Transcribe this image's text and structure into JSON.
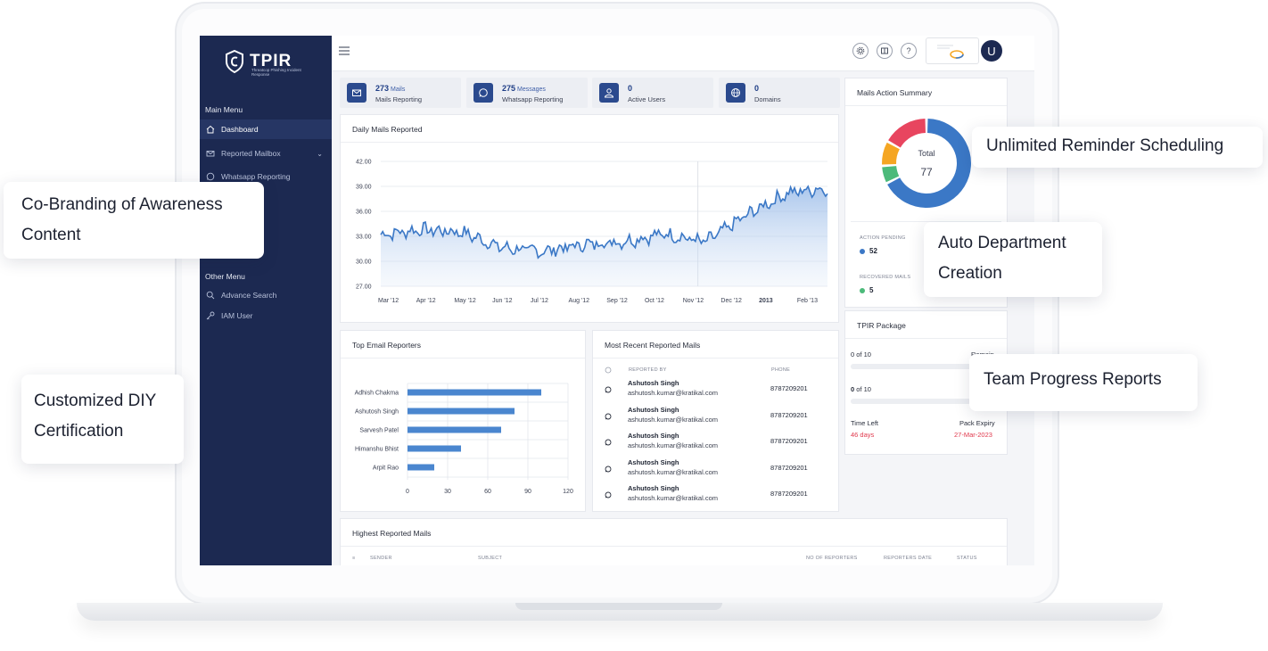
{
  "sidebar": {
    "brand": "TPIR",
    "brand_tagline": "Threatcop Phishing Incident Response",
    "main_menu_label": "Main Menu",
    "items": [
      {
        "label": "Dashboard",
        "icon": "home-icon",
        "active": true
      },
      {
        "label": "Reported Mailbox",
        "icon": "mail-icon",
        "has_caret": true
      },
      {
        "label": "Whatsapp Reporting",
        "icon": "whatsapp-icon"
      }
    ],
    "other_menu_label": "Other Menu",
    "other_items": [
      {
        "label": "Advance Search",
        "icon": "search-icon"
      },
      {
        "label": "IAM User",
        "icon": "key-icon"
      }
    ]
  },
  "topbar": {
    "avatar_initial": "U",
    "icons": [
      "gear-icon",
      "book-icon",
      "help-icon"
    ],
    "help_glyph": "?"
  },
  "stats": [
    {
      "number": "273",
      "unit": "Mails",
      "label": "Mails Reporting",
      "icon": "mail-icon"
    },
    {
      "number": "275",
      "unit": "Messages",
      "label": "Whatsapp Reporting",
      "icon": "whatsapp-icon"
    },
    {
      "number": "0",
      "unit": "",
      "label": "Active Users",
      "icon": "user-icon"
    },
    {
      "number": "0",
      "unit": "",
      "label": "Domains",
      "icon": "globe-icon"
    }
  ],
  "daily_chart": {
    "title": "Daily Mails Reported",
    "y_ticks": [
      "42.00",
      "39.00",
      "36.00",
      "33.00",
      "30.00",
      "27.00"
    ],
    "x_ticks": [
      "Mar '12",
      "Apr '12",
      "May '12",
      "Jun '12",
      "Jul '12",
      "Aug '12",
      "Sep '12",
      "Oct '12",
      "Nov '12",
      "Dec '12",
      "2013",
      "Feb '13"
    ]
  },
  "chart_data": [
    {
      "type": "area",
      "title": "Daily Mails Reported",
      "xlabel": "",
      "ylabel": "",
      "ylim": [
        27,
        42
      ],
      "x": [
        "Mar '12",
        "Apr '12",
        "May '12",
        "Jun '12",
        "Jul '12",
        "Aug '12",
        "Sep '12",
        "Oct '12",
        "Nov '12",
        "Dec '12",
        "2013",
        "Feb '13"
      ],
      "series": [
        {
          "values": [
            33.2,
            33.8,
            33.5,
            31.6,
            31.2,
            32.0,
            32.4,
            33.3,
            32.3,
            35.5,
            38.2,
            38.8
          ]
        }
      ],
      "grid": true
    },
    {
      "type": "bar",
      "orientation": "horizontal",
      "title": "Top Email Reporters",
      "categories": [
        "Adhish Chakma",
        "Ashutosh Singh",
        "Sarvesh Patel",
        "Himanshu Bhist",
        "Arpit Rao"
      ],
      "values": [
        100,
        80,
        70,
        40,
        20
      ],
      "x_ticks": [
        "0",
        "30",
        "60",
        "90",
        "120"
      ],
      "xlim": [
        0,
        120
      ],
      "color": "#4a86cf"
    },
    {
      "type": "pie",
      "title": "Mails Action Summary",
      "categories": [
        "Action Pending",
        "Recovered Mails",
        "Other (orange)",
        "Other (red)"
      ],
      "values": [
        52,
        5,
        7,
        13
      ],
      "colors": [
        "#3b78c6",
        "#4cba7a",
        "#f5a623",
        "#e8455f"
      ],
      "center_label": "Total",
      "center_value": "77"
    }
  ],
  "reporters": {
    "title": "Top Email Reporters",
    "names": [
      "Adhish Chakma",
      "Ashutosh Singh",
      "Sarvesh Patel",
      "Himanshu Bhist",
      "Arpit Rao"
    ],
    "x_ticks": [
      "0",
      "30",
      "60",
      "90",
      "120"
    ]
  },
  "recent": {
    "title": "Most Recent Reported Mails",
    "col_reported_by": "REPORTED BY",
    "col_phone": "PHONE",
    "rows": [
      {
        "name": "Ashutosh Singh",
        "email": "ashutosh.kumar@kratikal.com",
        "phone": "8787209201"
      },
      {
        "name": "Ashutosh Singh",
        "email": "ashutosh.kumar@kratikal.com",
        "phone": "8787209201"
      },
      {
        "name": "Ashutosh Singh",
        "email": "ashutosh.kumar@kratikal.com",
        "phone": "8787209201"
      },
      {
        "name": "Ashutosh Singh",
        "email": "ashutosh.kumar@kratikal.com",
        "phone": "8787209201"
      },
      {
        "name": "Ashutosh Singh",
        "email": "ashutosh.kumar@kratikal.com",
        "phone": "8787209201"
      }
    ]
  },
  "summary": {
    "title": "Mails Action Summary",
    "total_label": "Total",
    "total_value": "77",
    "pending_label": "ACTION PENDING",
    "pending_value": "52",
    "recovered_label": "RECOVERED MAILS",
    "recovered_value": "5"
  },
  "package": {
    "title": "TPIR Package",
    "line1": "0 of 10",
    "line1_right": "Remain",
    "line2_prefix": "0",
    "line2_suffix": "of 10",
    "time_left_label": "Time Left",
    "time_left_value": "46 days",
    "expiry_label": "Pack Expiry",
    "expiry_value": "27-Mar-2023"
  },
  "highest": {
    "title": "Highest Reported Mails",
    "cols": [
      "SENDER",
      "SUBJECT",
      "NO OF REPORTERS",
      "REPORTERS DATE",
      "STATUS"
    ]
  },
  "callouts": {
    "reminder": "Unlimited Reminder Scheduling",
    "co_branding_1": "Co-Branding of Awareness",
    "co_branding_2": "Content",
    "auto_dept_1": "Auto Department",
    "auto_dept_2": "Creation",
    "diy_1": "Customized DIY",
    "diy_2": "Certification",
    "team": "Team Progress Reports"
  },
  "colors": {
    "sidebar": "#1c2951",
    "accent": "#2b4a8e",
    "chart_line": "#3b78c6",
    "bar": "#4a86cf",
    "danger": "#e0384c"
  }
}
